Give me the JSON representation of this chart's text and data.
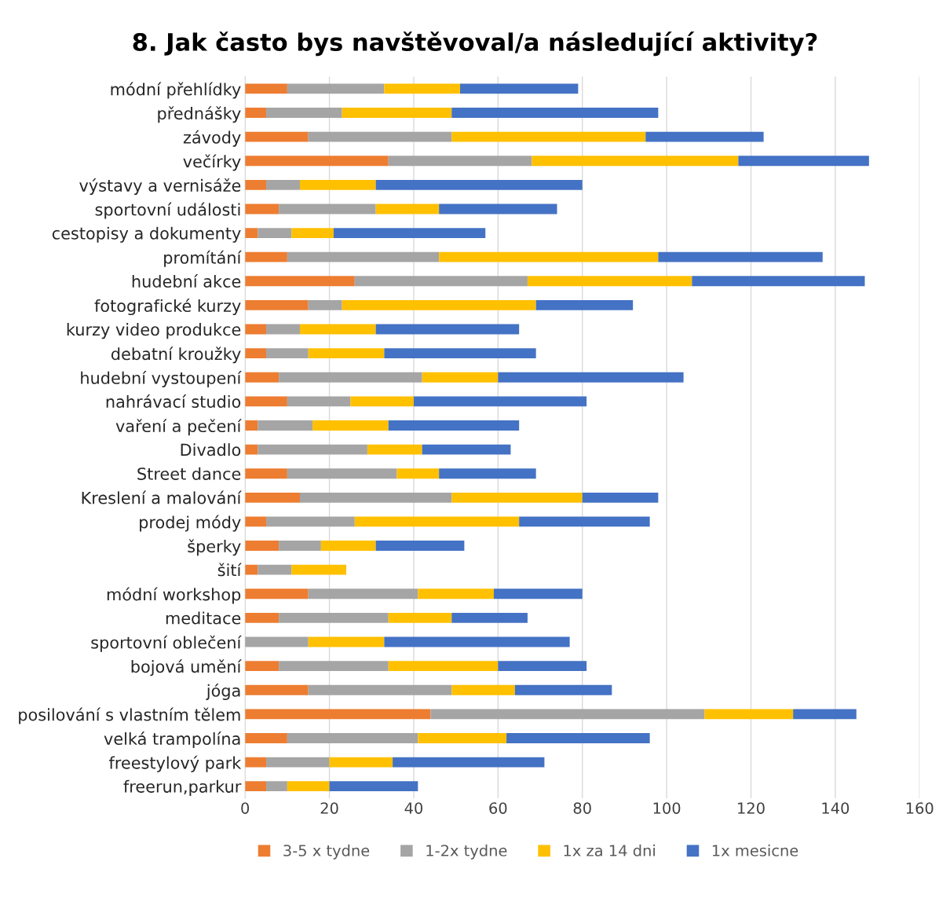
{
  "chart_data": {
    "type": "bar",
    "orientation": "horizontal",
    "stacked": true,
    "title": "8. Jak často bys navštěvoval/a následující aktivity?",
    "categories": [
      "módní přehlídky",
      "přednášky",
      "závody",
      "večírky",
      "výstavy a vernisáže",
      "sportovní události",
      "cestopisy a dokumenty",
      "promítání",
      "hudební akce",
      "fotografické kurzy",
      "kurzy video produkce",
      "debatní kroužky",
      "hudební vystoupení",
      "nahrávací studio",
      "vaření a pečení",
      "Divadlo",
      "Street dance",
      "Kreslení a malování",
      "prodej módy",
      "šperky",
      "šití",
      "módní workshop",
      "meditace",
      "sportovní oblečení",
      "bojová umění",
      "jóga",
      "posilování s vlastním tělem",
      "velká trampolína",
      "freestylový park",
      "freerun,parkur"
    ],
    "series": [
      {
        "name": "3-5 x tydne",
        "color": "#ed7d31",
        "values": [
          10,
          5,
          15,
          34,
          5,
          8,
          3,
          10,
          26,
          15,
          5,
          5,
          8,
          10,
          3,
          3,
          10,
          13,
          5,
          8,
          3,
          15,
          8,
          null,
          8,
          15,
          44,
          10,
          5,
          5
        ]
      },
      {
        "name": "1-2x tydne",
        "color": "#a5a5a5",
        "values": [
          23,
          18,
          34,
          34,
          8,
          23,
          8,
          36,
          41,
          8,
          8,
          10,
          34,
          15,
          13,
          26,
          26,
          36,
          21,
          10,
          8,
          26,
          26,
          15,
          26,
          34,
          65,
          31,
          15,
          5
        ]
      },
      {
        "name": "1x za 14 dni",
        "color": "#ffc000",
        "values": [
          18,
          26,
          46,
          49,
          18,
          15,
          10,
          52,
          39,
          46,
          18,
          18,
          18,
          15,
          18,
          13,
          10,
          31,
          39,
          13,
          13,
          18,
          15,
          18,
          26,
          15,
          21,
          21,
          15,
          10
        ]
      },
      {
        "name": "1x mesicne",
        "color": "#4472c4",
        "values": [
          28,
          49,
          28,
          31,
          49,
          28,
          36,
          39,
          41,
          23,
          34,
          36,
          44,
          41,
          31,
          21,
          23,
          18,
          31,
          21,
          null,
          21,
          18,
          44,
          21,
          23,
          15,
          34,
          36,
          21
        ]
      }
    ],
    "xlim": [
      0,
      160
    ],
    "xticks": [
      0,
      20,
      40,
      60,
      80,
      100,
      120,
      140,
      160
    ],
    "grid": "x",
    "legend": "bottom"
  }
}
